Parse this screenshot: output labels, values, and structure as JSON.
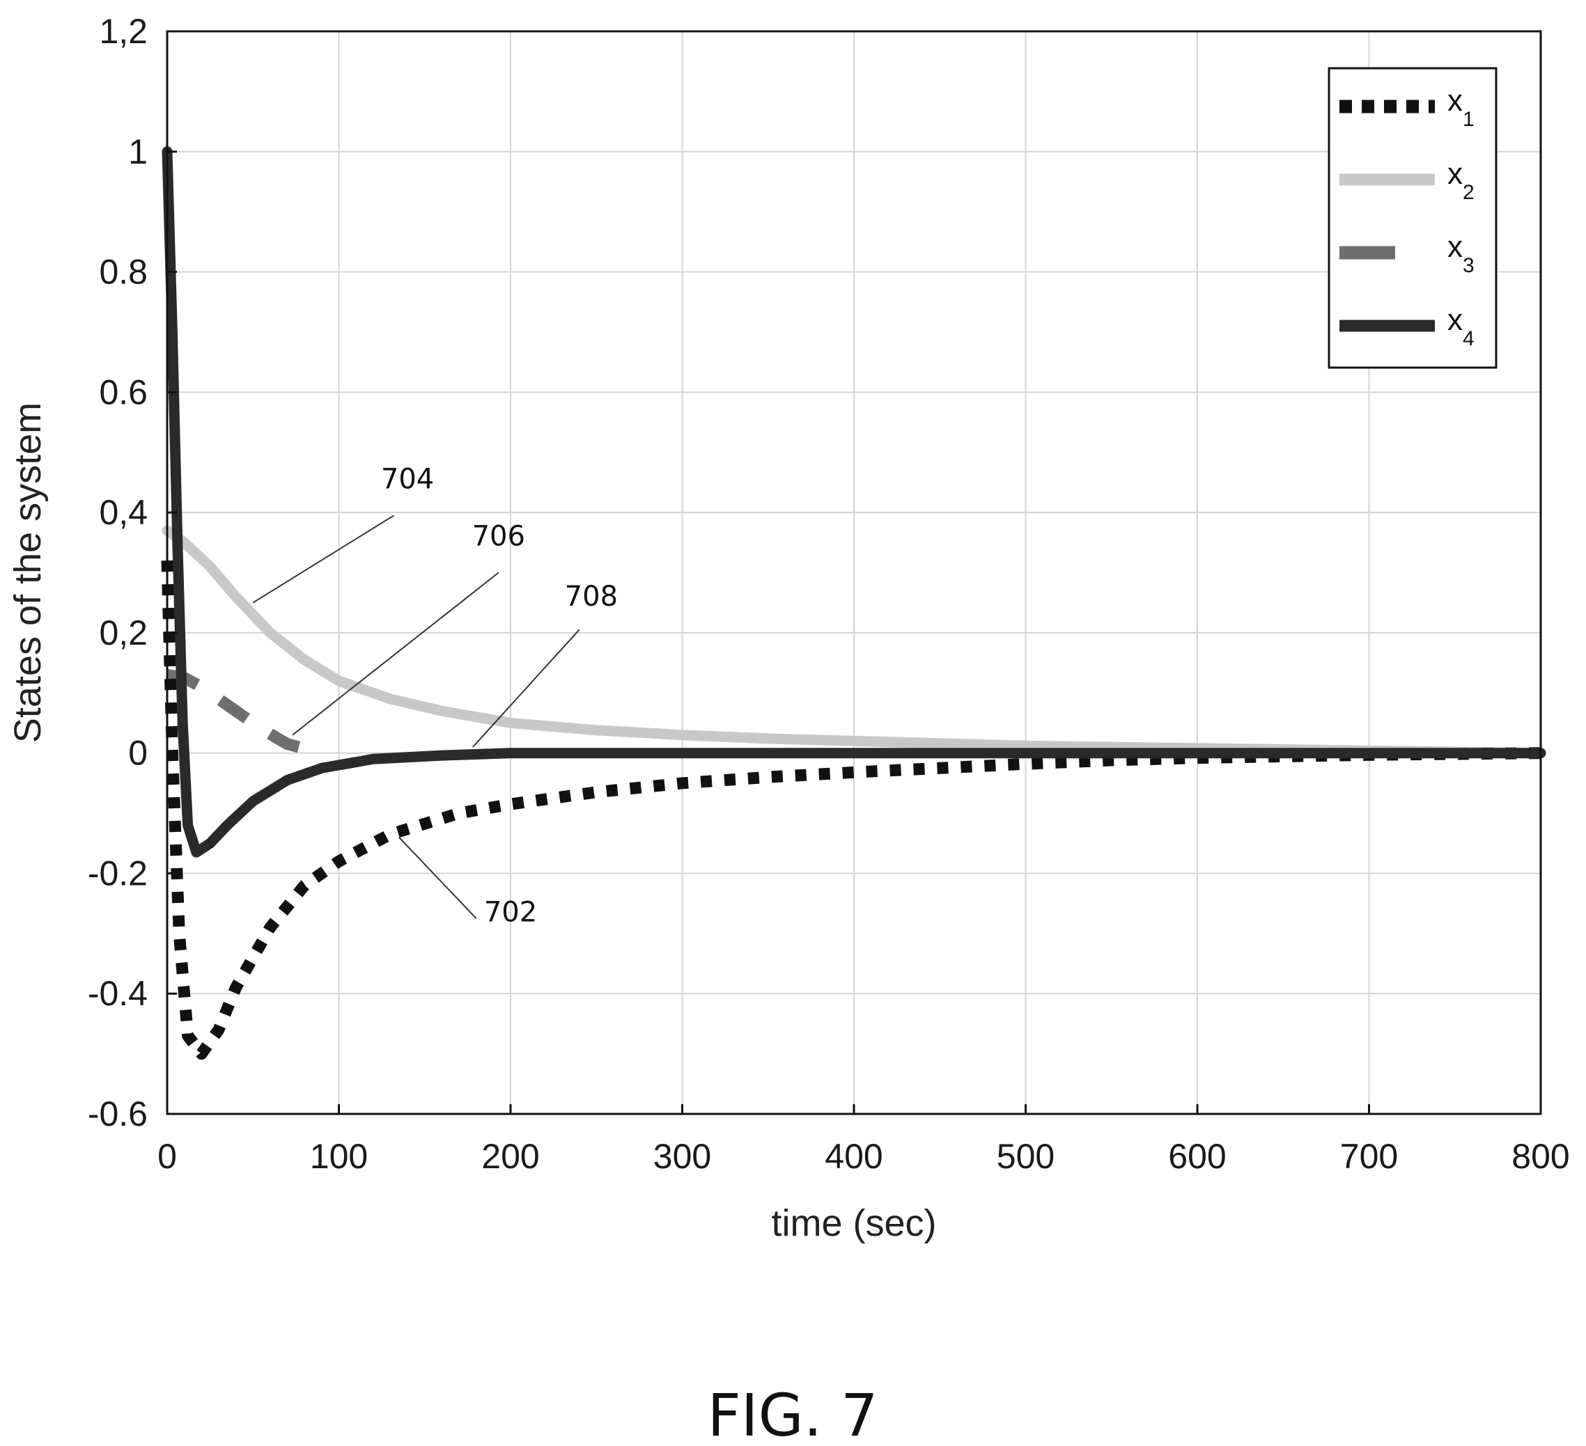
{
  "chart_data": {
    "type": "line",
    "xlabel": "time (sec)",
    "ylabel": "States of the system",
    "xlim": [
      0,
      800
    ],
    "ylim": [
      -0.6,
      1.2
    ],
    "xticks": [
      0,
      100,
      200,
      300,
      400,
      500,
      600,
      700,
      800
    ],
    "xtick_labels": [
      "0",
      "100",
      "200",
      "300",
      "400",
      "500",
      "600",
      "700",
      "800"
    ],
    "yticks": [
      -0.6,
      -0.4,
      -0.2,
      0,
      0.2,
      0.4,
      0.6,
      0.8,
      1,
      1.2
    ],
    "ytick_labels": [
      "-0.6",
      "-0.4",
      "-0.2",
      "0",
      "0,2",
      "0,4",
      "0.6",
      "0.8",
      "1",
      "1,2"
    ],
    "grid": true,
    "legend_position": "top-right",
    "series": [
      {
        "name": "x1",
        "name_main": "x",
        "name_sub": "1",
        "style": "dotted",
        "color": "#111111",
        "points": [
          [
            0,
            0.32
          ],
          [
            3,
            0
          ],
          [
            7,
            -0.3
          ],
          [
            12,
            -0.47
          ],
          [
            20,
            -0.5
          ],
          [
            30,
            -0.46
          ],
          [
            40,
            -0.39
          ],
          [
            60,
            -0.29
          ],
          [
            80,
            -0.22
          ],
          [
            100,
            -0.18
          ],
          [
            130,
            -0.135
          ],
          [
            170,
            -0.1
          ],
          [
            200,
            -0.085
          ],
          [
            250,
            -0.065
          ],
          [
            300,
            -0.05
          ],
          [
            350,
            -0.04
          ],
          [
            400,
            -0.032
          ],
          [
            450,
            -0.025
          ],
          [
            500,
            -0.018
          ],
          [
            550,
            -0.012
          ],
          [
            600,
            -0.008
          ],
          [
            700,
            -0.003
          ],
          [
            800,
            0
          ]
        ]
      },
      {
        "name": "x2",
        "name_main": "x",
        "name_sub": "2",
        "style": "solid",
        "color": "#c8c8c8",
        "points": [
          [
            0,
            0.37
          ],
          [
            10,
            0.35
          ],
          [
            25,
            0.31
          ],
          [
            40,
            0.26
          ],
          [
            60,
            0.2
          ],
          [
            80,
            0.155
          ],
          [
            100,
            0.12
          ],
          [
            130,
            0.09
          ],
          [
            160,
            0.07
          ],
          [
            200,
            0.05
          ],
          [
            250,
            0.038
          ],
          [
            300,
            0.03
          ],
          [
            350,
            0.024
          ],
          [
            400,
            0.02
          ],
          [
            450,
            0.016
          ],
          [
            500,
            0.012
          ],
          [
            600,
            0.008
          ],
          [
            700,
            0.004
          ],
          [
            800,
            0
          ]
        ]
      },
      {
        "name": "x3",
        "name_main": "x",
        "name_sub": "3",
        "style": "dashed",
        "color": "#6e6e6e",
        "points": [
          [
            0,
            0.13
          ],
          [
            10,
            0.125
          ],
          [
            20,
            0.11
          ],
          [
            30,
            0.09
          ],
          [
            40,
            0.07
          ],
          [
            55,
            0.04
          ],
          [
            70,
            0.015
          ],
          [
            90,
            0
          ]
        ]
      },
      {
        "name": "x4",
        "name_main": "x",
        "name_sub": "4",
        "style": "solid",
        "color": "#2a2a2a",
        "points": [
          [
            0,
            1
          ],
          [
            3,
            0.7
          ],
          [
            6,
            0.35
          ],
          [
            9,
            0.05
          ],
          [
            12,
            -0.12
          ],
          [
            17,
            -0.165
          ],
          [
            25,
            -0.15
          ],
          [
            35,
            -0.12
          ],
          [
            50,
            -0.08
          ],
          [
            70,
            -0.045
          ],
          [
            90,
            -0.025
          ],
          [
            120,
            -0.01
          ],
          [
            160,
            -0.004
          ],
          [
            200,
            0
          ],
          [
            800,
            0
          ]
        ]
      }
    ],
    "annotations": [
      {
        "label": "704",
        "text_x": 140,
        "text_y": 0.44,
        "line_from": [
          132,
          0.395
        ],
        "line_to": [
          50,
          0.25
        ]
      },
      {
        "label": "706",
        "text_x": 193,
        "text_y": 0.345,
        "line_from": [
          193,
          0.3
        ],
        "line_to": [
          73,
          0.03
        ]
      },
      {
        "label": "708",
        "text_x": 247,
        "text_y": 0.245,
        "line_from": [
          240,
          0.205
        ],
        "line_to": [
          178,
          0.01
        ]
      },
      {
        "label": "702",
        "text_x": 200,
        "text_y": -0.28,
        "line_from": [
          180,
          -0.275
        ],
        "line_to": [
          135,
          -0.14
        ]
      }
    ]
  },
  "figure_caption": "FIG. 7"
}
